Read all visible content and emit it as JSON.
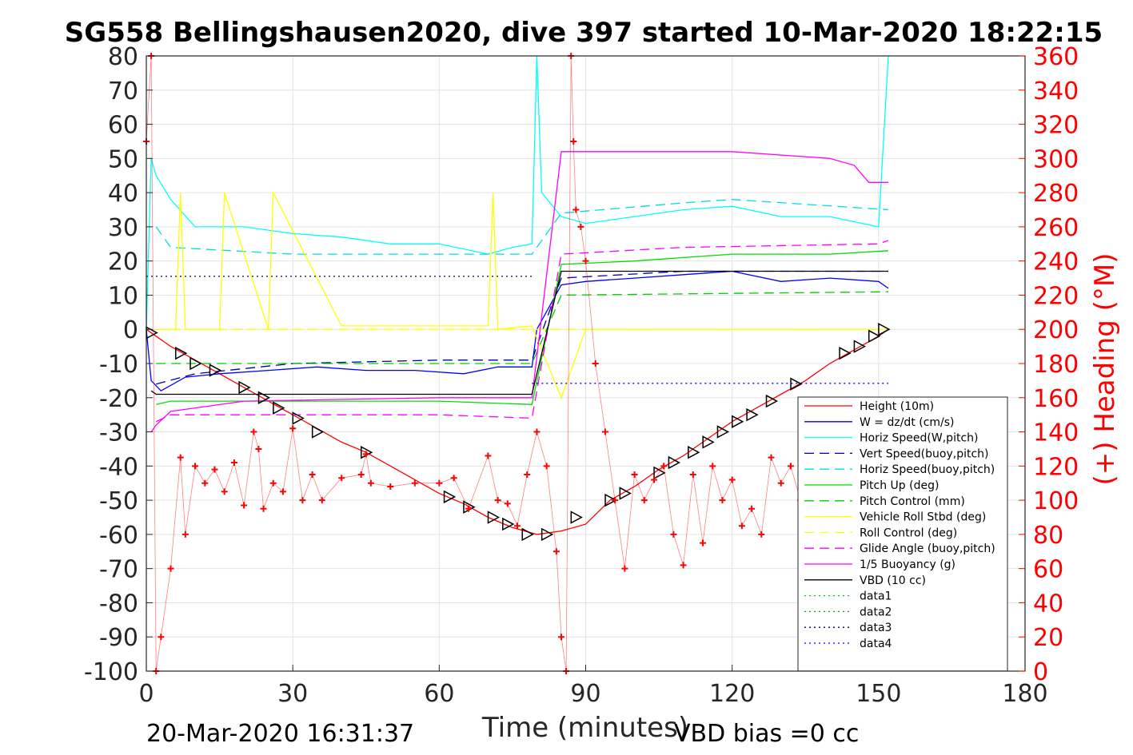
{
  "chart_data": {
    "type": "line",
    "title": "SG558 Bellingshausen2020, dive 397 started 10-Mar-2020 18:22:15",
    "xlabel": "Time (minutes)",
    "ylabel": "",
    "y2label": "(+) Heading (°M)",
    "xlim": [
      0,
      180
    ],
    "ylim": [
      -100,
      80
    ],
    "y2lim": [
      0,
      360
    ],
    "xticks": [
      "0",
      "30",
      "60",
      "90",
      "120",
      "150",
      "180"
    ],
    "yticks": [
      "80",
      "70",
      "60",
      "50",
      "40",
      "30",
      "20",
      "10",
      "0",
      "-10",
      "-20",
      "-30",
      "-40",
      "-50",
      "-60",
      "-70",
      "-80",
      "-90",
      "-100"
    ],
    "y2ticks": [
      "360",
      "340",
      "320",
      "300",
      "280",
      "260",
      "240",
      "220",
      "200",
      "180",
      "160",
      "140",
      "120",
      "100",
      "80",
      "60",
      "40",
      "20",
      "0"
    ],
    "grid": true,
    "legend_position": "bottom-right",
    "footer_left": "20-Mar-2020 16:31:37",
    "footer_right": "VBD bias =0 cc",
    "series": [
      {
        "name": "Height (10m)",
        "color": "#ff0000",
        "style": "solid",
        "x": [
          0,
          2,
          5,
          10,
          15,
          20,
          25,
          30,
          35,
          40,
          45,
          50,
          55,
          60,
          65,
          70,
          75,
          80,
          85,
          90,
          95,
          100,
          105,
          110,
          115,
          120,
          125,
          130,
          135,
          140,
          145,
          150,
          152
        ],
        "y": [
          0,
          -2,
          -5,
          -9,
          -13,
          -17,
          -21,
          -25,
          -29,
          -33,
          -36,
          -40,
          -44,
          -48,
          -51,
          -55,
          -58,
          -60,
          -59,
          -57,
          -50,
          -46,
          -41,
          -37,
          -32,
          -27,
          -23,
          -19,
          -15,
          -10,
          -6,
          -2,
          0
        ]
      },
      {
        "name": "W = dz/dt (cm/s)",
        "color": "#0000ff",
        "style": "solid",
        "x": [
          0,
          1,
          3,
          8,
          15,
          25,
          35,
          45,
          55,
          65,
          72,
          79,
          80,
          85,
          90,
          100,
          110,
          120,
          130,
          140,
          150,
          152
        ],
        "y": [
          0,
          -15,
          -18,
          -14,
          -13,
          -12,
          -11,
          -12,
          -12,
          -13,
          -11,
          -11,
          0,
          13,
          14,
          15,
          16,
          17,
          14,
          15,
          14,
          12
        ]
      },
      {
        "name": "Horiz Speed(W,pitch)",
        "color": "#00ffff",
        "style": "solid",
        "x": [
          0,
          1,
          2,
          5,
          10,
          20,
          30,
          40,
          50,
          60,
          70,
          75,
          79,
          80,
          81,
          85,
          90,
          100,
          110,
          120,
          130,
          140,
          150,
          152
        ],
        "y": [
          0,
          50,
          45,
          38,
          30,
          30,
          28,
          27,
          25,
          25,
          22,
          24,
          25,
          80,
          40,
          33,
          31,
          33,
          35,
          36,
          33,
          33,
          30,
          80
        ]
      },
      {
        "name": "Vert Speed(buoy,pitch)",
        "color": "#0000aa",
        "style": "dash",
        "x": [
          2,
          10,
          30,
          60,
          79,
          85,
          110,
          152
        ],
        "y": [
          -16,
          -13,
          -10,
          -9,
          -9,
          15,
          17,
          17
        ]
      },
      {
        "name": "Horiz Speed(buoy,pitch)",
        "color": "#00dddd",
        "style": "dash",
        "x": [
          2,
          5,
          30,
          60,
          79,
          85,
          110,
          120,
          152
        ],
        "y": [
          30,
          24,
          22,
          22,
          22,
          34,
          37,
          38,
          35
        ]
      },
      {
        "name": "Pitch Up (deg)",
        "color": "#00dd00",
        "style": "solid",
        "x": [
          2,
          5,
          30,
          60,
          79,
          85,
          100,
          120,
          140,
          152
        ],
        "y": [
          -22,
          -21,
          -21,
          -21,
          -22,
          19,
          20,
          22,
          22,
          23
        ]
      },
      {
        "name": "Pitch Control (mm)",
        "color": "#00cc00",
        "style": "dash",
        "x": [
          2,
          30,
          60,
          79,
          85,
          152
        ],
        "y": [
          -10,
          -10,
          -10,
          -10,
          10,
          11
        ]
      },
      {
        "name": "Vehicle Roll Stbd (deg)",
        "color": "#ffff00",
        "style": "solid",
        "x": [
          2,
          6,
          7,
          8,
          15,
          16,
          25,
          26,
          40,
          70,
          71,
          72,
          79,
          85,
          90,
          100,
          110,
          120,
          130,
          140,
          152
        ],
        "y": [
          0,
          0,
          40,
          0,
          0,
          40,
          0,
          40,
          1,
          1,
          40,
          0,
          1,
          -20,
          0,
          0,
          0,
          0,
          0,
          0,
          0
        ]
      },
      {
        "name": "Roll Control (deg)",
        "color": "#ffff00",
        "style": "dash",
        "x": [
          2,
          40,
          79,
          85,
          152
        ],
        "y": [
          0,
          0,
          0,
          0,
          0
        ]
      },
      {
        "name": "Glide Angle (buoy,pitch)",
        "color": "#ff00ff",
        "style": "dash",
        "x": [
          2,
          5,
          30,
          60,
          79,
          85,
          110,
          150,
          152
        ],
        "y": [
          -27,
          -25,
          -25,
          -25,
          -26,
          22,
          24,
          25,
          26
        ]
      },
      {
        "name": "1/5 Buoyancy (g)",
        "color": "#ff00ff",
        "style": "solid",
        "x": [
          1,
          2,
          5,
          20,
          60,
          79,
          85,
          100,
          120,
          140,
          145,
          148,
          152
        ],
        "y": [
          -30,
          -28,
          -24,
          -21,
          -20,
          -20,
          52,
          52,
          52,
          50,
          48,
          43,
          43
        ]
      },
      {
        "name": "VBD (10 cc)",
        "color": "#000000",
        "style": "solid",
        "x": [
          1,
          2,
          79,
          85,
          152
        ],
        "y": [
          -18,
          -19,
          -19,
          17,
          17
        ]
      },
      {
        "name": "data1",
        "color": "#00cc00",
        "style": "dot",
        "x": [],
        "y": []
      },
      {
        "name": "data2",
        "color": "#00aa00",
        "style": "dot",
        "x": [],
        "y": []
      },
      {
        "name": "data3",
        "color": "#000066",
        "style": "dot",
        "x": [
          0,
          79
        ],
        "y": [
          15.5,
          15.5
        ]
      },
      {
        "name": "data4",
        "color": "#0000ff",
        "style": "dot",
        "x": [
          79,
          152
        ],
        "y": [
          -15.8,
          -15.8
        ]
      }
    ],
    "heading_series": {
      "axis": "right",
      "color": "#ff0000",
      "marker": "+",
      "x": [
        0,
        1,
        2,
        3,
        5,
        7,
        8,
        10,
        12,
        14,
        16,
        18,
        20,
        22,
        23,
        24,
        26,
        28,
        30,
        32,
        34,
        36,
        40,
        44,
        45,
        46,
        50,
        55,
        60,
        63,
        66,
        70,
        72,
        74,
        76,
        78,
        80,
        82,
        84,
        85,
        86,
        87,
        87.5,
        88,
        89,
        90,
        92,
        94,
        96,
        98,
        100,
        102,
        104,
        106,
        108,
        110,
        112,
        114,
        116,
        118,
        120,
        122,
        124,
        126,
        128,
        130,
        132,
        134,
        136,
        138,
        140,
        142,
        144,
        146,
        148,
        150,
        152
      ],
      "y": [
        310,
        360,
        0,
        20,
        60,
        125,
        80,
        120,
        110,
        118,
        105,
        122,
        97,
        140,
        130,
        95,
        110,
        105,
        142,
        100,
        115,
        100,
        113,
        115,
        127,
        110,
        108,
        110,
        110,
        113,
        95,
        126,
        100,
        98,
        85,
        115,
        140,
        120,
        70,
        20,
        0,
        360,
        310,
        270,
        260,
        240,
        180,
        140,
        100,
        60,
        115,
        100,
        112,
        120,
        80,
        62,
        115,
        75,
        120,
        100,
        112,
        85,
        95,
        80,
        125,
        110,
        120,
        100,
        115,
        95,
        112,
        80,
        120,
        90,
        115,
        100,
        110
      ]
    },
    "vbd_markers": {
      "color": "#000000",
      "marker": "triangle",
      "x": [
        1,
        7,
        10,
        14,
        20,
        24,
        27,
        31,
        35,
        45,
        62,
        66,
        71,
        74,
        78,
        82,
        88,
        95,
        98,
        105,
        108,
        112,
        115,
        118,
        121,
        124,
        128,
        133,
        143,
        146,
        149,
        151
      ],
      "y": [
        -1,
        -7,
        -10,
        -12,
        -17,
        -20,
        -23,
        -26,
        -30,
        -36,
        -49,
        -52,
        -55,
        -57,
        -60,
        -60,
        -55,
        -50,
        -48,
        -42,
        -39,
        -36,
        -33,
        -30,
        -27,
        -25,
        -21,
        -16,
        -7,
        -5,
        -2,
        0
      ]
    }
  }
}
